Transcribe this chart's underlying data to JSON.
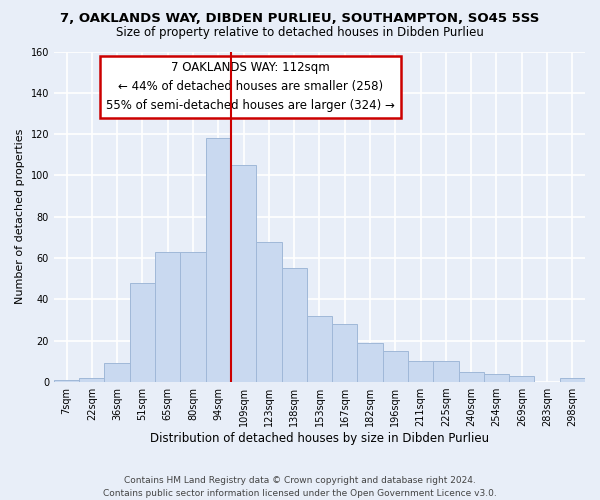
{
  "title": "7, OAKLANDS WAY, DIBDEN PURLIEU, SOUTHAMPTON, SO45 5SS",
  "subtitle": "Size of property relative to detached houses in Dibden Purlieu",
  "xlabel": "Distribution of detached houses by size in Dibden Purlieu",
  "ylabel": "Number of detached properties",
  "bar_labels": [
    "7sqm",
    "22sqm",
    "36sqm",
    "51sqm",
    "65sqm",
    "80sqm",
    "94sqm",
    "109sqm",
    "123sqm",
    "138sqm",
    "153sqm",
    "167sqm",
    "182sqm",
    "196sqm",
    "211sqm",
    "225sqm",
    "240sqm",
    "254sqm",
    "269sqm",
    "283sqm",
    "298sqm"
  ],
  "bar_heights": [
    1,
    2,
    9,
    48,
    63,
    63,
    118,
    105,
    68,
    55,
    32,
    28,
    19,
    15,
    10,
    10,
    5,
    4,
    3,
    0,
    2
  ],
  "bar_color": "#c9d9f0",
  "bar_edge_color": "#a0b8d8",
  "vline_x_index": 6,
  "vline_color": "#cc0000",
  "ylim": [
    0,
    160
  ],
  "yticks": [
    0,
    20,
    40,
    60,
    80,
    100,
    120,
    140,
    160
  ],
  "annotation_title": "7 OAKLANDS WAY: 112sqm",
  "annotation_line1": "← 44% of detached houses are smaller (258)",
  "annotation_line2": "55% of semi-detached houses are larger (324) →",
  "annotation_box_color": "#ffffff",
  "annotation_box_edge": "#cc0000",
  "footer_line1": "Contains HM Land Registry data © Crown copyright and database right 2024.",
  "footer_line2": "Contains public sector information licensed under the Open Government Licence v3.0.",
  "background_color": "#e8eef8",
  "grid_color": "#ffffff",
  "title_fontsize": 9.5,
  "subtitle_fontsize": 8.5,
  "xlabel_fontsize": 8.5,
  "ylabel_fontsize": 8,
  "tick_fontsize": 7,
  "annotation_fontsize": 8.5,
  "footer_fontsize": 6.5
}
